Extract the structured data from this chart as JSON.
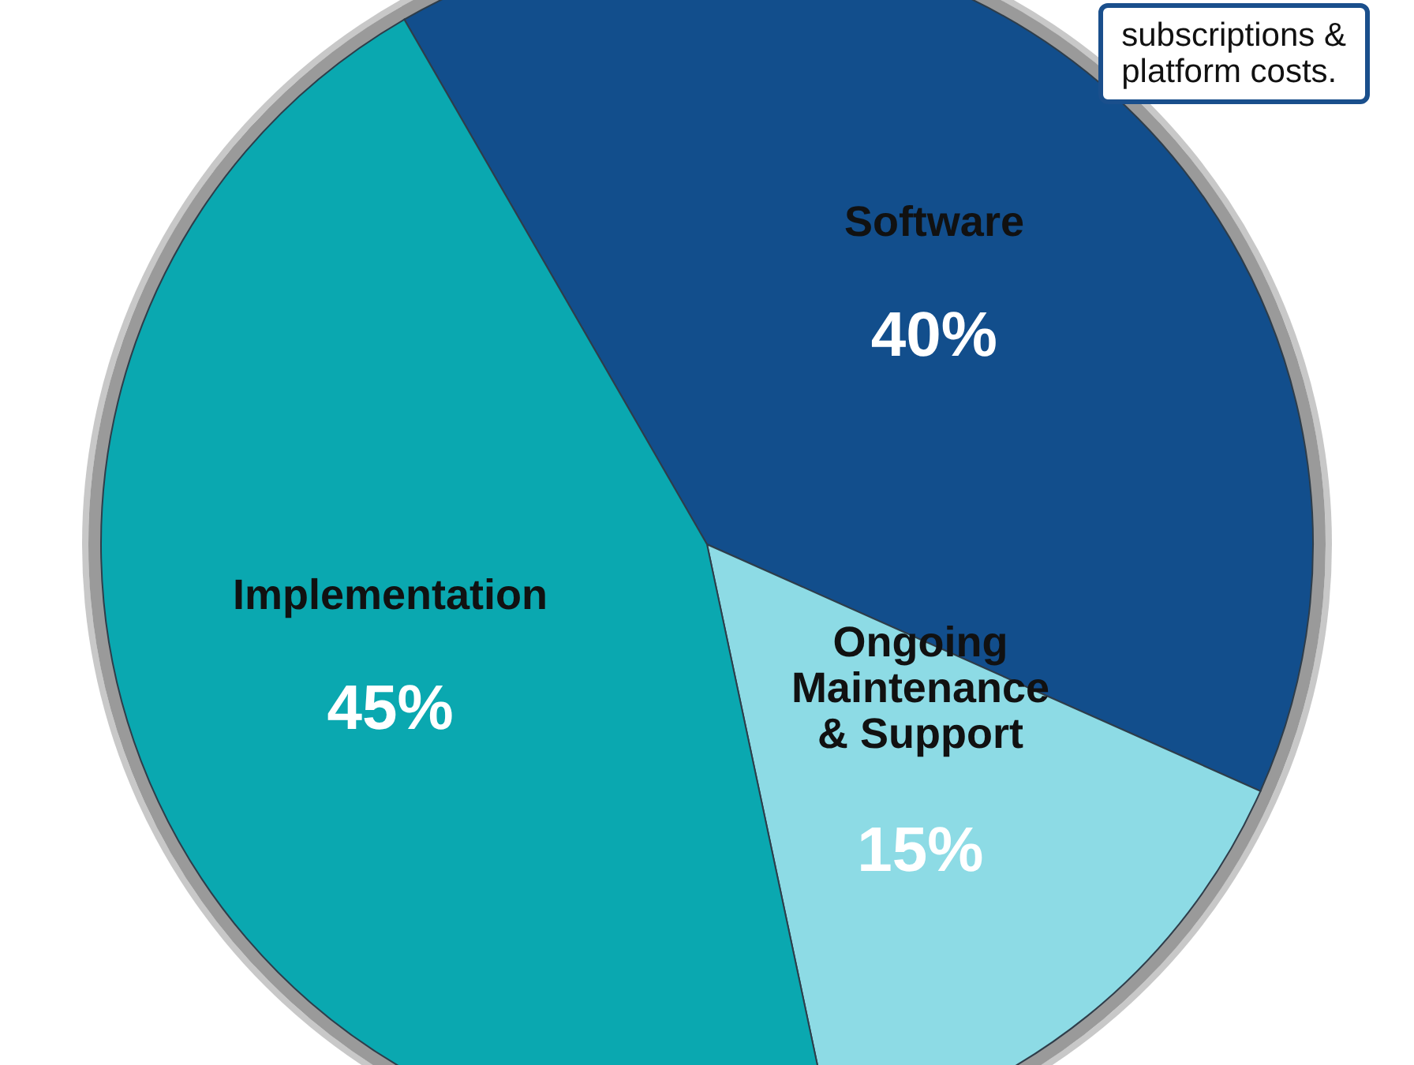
{
  "chart_data": {
    "type": "pie",
    "categories": [
      "Software",
      "Ongoing\nMaintenance\n& Support",
      "Implementation"
    ],
    "values": [
      40,
      15,
      45
    ],
    "value_labels": [
      "40%",
      "15%",
      "45%"
    ],
    "colors": [
      "#124e8c",
      "#8ddbe5",
      "#0aa8b0"
    ],
    "annotations": [
      "subscriptions &\nplatform costs."
    ]
  }
}
